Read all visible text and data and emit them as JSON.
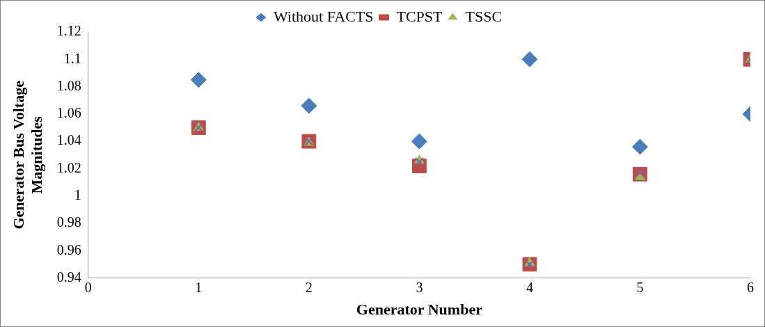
{
  "chart_data": {
    "type": "scatter",
    "xlabel": "Generator Number",
    "ylabel": "Generator Bus Voltage Magnitudes",
    "x": [
      1,
      2,
      3,
      4,
      5,
      6
    ],
    "series": [
      {
        "name": "Without FACTS",
        "color": "#4a7ebb",
        "marker": "diamond",
        "values": [
          1.085,
          1.066,
          1.04,
          1.1,
          1.036,
          1.06
        ]
      },
      {
        "name": "TCPST",
        "color": "#be4b48",
        "marker": "square",
        "values": [
          1.05,
          1.04,
          1.022,
          0.95,
          1.016,
          1.1
        ]
      },
      {
        "name": "TSSC",
        "color": "#98b954",
        "marker": "triangle",
        "values": [
          1.05,
          1.039,
          1.026,
          0.951,
          1.014,
          1.1
        ]
      },
      {
        "color": "#8064a2",
        "marker": "cross",
        "values": [
          1.05,
          1.04,
          1.025,
          0.95,
          1.017,
          1.1
        ]
      }
    ],
    "xlim": [
      0,
      6
    ],
    "xticks": [
      0,
      1,
      2,
      3,
      4,
      5,
      6
    ],
    "ylim": [
      0.94,
      1.12
    ],
    "yticks": [
      0.94,
      0.96,
      0.98,
      1,
      1.02,
      1.04,
      1.06,
      1.08,
      1.1,
      1.12
    ],
    "grid": false,
    "legend": "top"
  }
}
